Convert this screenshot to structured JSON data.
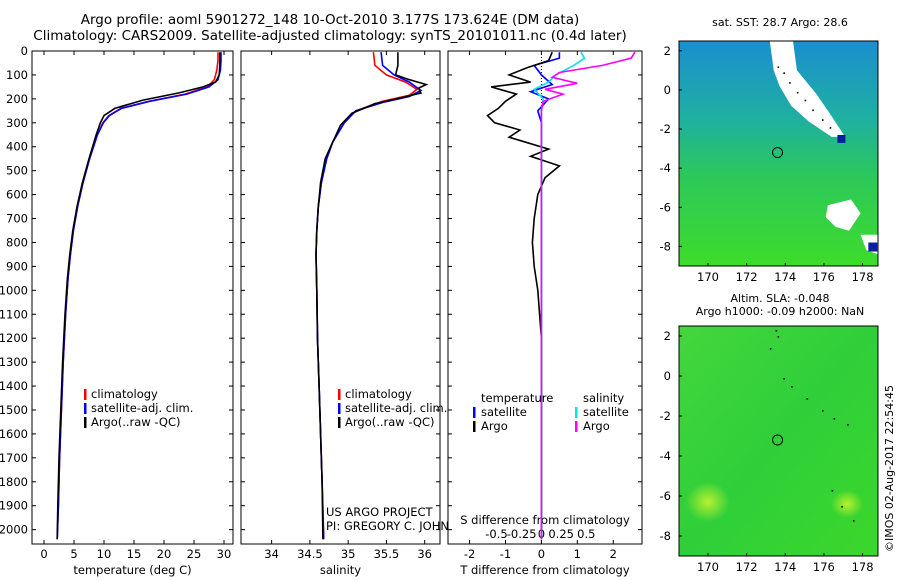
{
  "header": {
    "line1": "Argo profile: aoml 5901272_148 10-Oct-2010 3.177S 173.624E (DM data)",
    "line2": "Climatology: CARS2009. Satellite-adjusted climatology: synTS_20101011.nc (0.4d later)"
  },
  "colors": {
    "climatology": "#ff0000",
    "satellite": "#0000ff",
    "argo": "#000000",
    "sat_salinity": "#00e5e5",
    "argo_salinity": "#ff00ff"
  },
  "chart_data": [
    {
      "type": "line",
      "xlabel": "temperature (deg C)",
      "xlim": [
        -2,
        31.5
      ],
      "ylim": [
        0,
        2060
      ],
      "xticks": [
        0,
        5,
        10,
        15,
        20,
        25,
        30
      ],
      "yticks": [
        0,
        100,
        200,
        300,
        400,
        500,
        600,
        700,
        800,
        900,
        1000,
        1100,
        1200,
        1300,
        1400,
        1500,
        1600,
        1700,
        1800,
        1900,
        2000
      ],
      "legend": [
        "climatology",
        "satellite-adj. clim.",
        "Argo(..raw -QC)"
      ],
      "series": [
        {
          "name": "climatology",
          "color": "#ff0000",
          "points": [
            [
              29.0,
              5
            ],
            [
              29.0,
              40
            ],
            [
              28.8,
              80
            ],
            [
              28.4,
              120
            ],
            [
              27.2,
              150
            ],
            [
              23.5,
              180
            ],
            [
              17.5,
              210
            ],
            [
              12.8,
              240
            ],
            [
              10.8,
              270
            ],
            [
              9.8,
              300
            ],
            [
              8.9,
              350
            ],
            [
              7.6,
              450
            ],
            [
              6.5,
              550
            ],
            [
              5.6,
              650
            ],
            [
              4.9,
              750
            ],
            [
              4.4,
              850
            ],
            [
              4.0,
              950
            ],
            [
              3.6,
              1100
            ],
            [
              3.2,
              1300
            ],
            [
              2.9,
              1500
            ],
            [
              2.6,
              1700
            ],
            [
              2.4,
              1900
            ],
            [
              2.2,
              2040
            ]
          ]
        },
        {
          "name": "satellite-adj. clim.",
          "color": "#0000ff",
          "points": [
            [
              29.5,
              5
            ],
            [
              29.5,
              40
            ],
            [
              29.4,
              80
            ],
            [
              29.0,
              120
            ],
            [
              27.5,
              150
            ],
            [
              23.8,
              180
            ],
            [
              17.6,
              210
            ],
            [
              12.9,
              240
            ],
            [
              10.9,
              270
            ],
            [
              9.9,
              300
            ],
            [
              8.9,
              350
            ],
            [
              7.6,
              450
            ],
            [
              6.5,
              550
            ],
            [
              5.6,
              650
            ],
            [
              4.9,
              750
            ],
            [
              4.4,
              850
            ],
            [
              4.0,
              950
            ],
            [
              3.6,
              1100
            ],
            [
              3.2,
              1300
            ],
            [
              2.9,
              1500
            ],
            [
              2.6,
              1700
            ],
            [
              2.4,
              1900
            ],
            [
              2.2,
              2040
            ]
          ]
        },
        {
          "name": "Argo(..raw -QC)",
          "color": "#000000",
          "points": [
            [
              29.3,
              5
            ],
            [
              29.3,
              60
            ],
            [
              29.2,
              100
            ],
            [
              28.6,
              130
            ],
            [
              26.5,
              150
            ],
            [
              22.5,
              175
            ],
            [
              16.5,
              205
            ],
            [
              11.8,
              240
            ],
            [
              10.0,
              270
            ],
            [
              9.4,
              300
            ],
            [
              8.7,
              350
            ],
            [
              7.5,
              450
            ],
            [
              6.4,
              550
            ],
            [
              5.5,
              650
            ],
            [
              4.8,
              750
            ],
            [
              4.3,
              850
            ],
            [
              3.9,
              950
            ],
            [
              3.5,
              1100
            ],
            [
              3.1,
              1300
            ],
            [
              2.8,
              1500
            ],
            [
              2.5,
              1700
            ],
            [
              2.3,
              1900
            ],
            [
              2.2,
              2040
            ]
          ]
        }
      ]
    },
    {
      "type": "line",
      "xlabel": "salinity",
      "xlim": [
        33.6,
        36.2
      ],
      "ylim": [
        0,
        2060
      ],
      "xticks": [
        34,
        34.5,
        35,
        35.5,
        36
      ],
      "legend": [
        "climatology",
        "satellite-adj. clim.",
        "Argo(..raw -QC)"
      ],
      "annotation": [
        "US ARGO PROJECT",
        "PI: GREGORY C. JOHNSON"
      ],
      "series": [
        {
          "name": "climatology",
          "color": "#ff0000",
          "points": [
            [
              35.33,
              5
            ],
            [
              35.35,
              60
            ],
            [
              35.5,
              100
            ],
            [
              35.75,
              130
            ],
            [
              35.9,
              160
            ],
            [
              35.8,
              185
            ],
            [
              35.45,
              210
            ],
            [
              35.1,
              250
            ],
            [
              34.95,
              300
            ],
            [
              34.8,
              380
            ],
            [
              34.72,
              450
            ],
            [
              34.65,
              550
            ],
            [
              34.61,
              650
            ],
            [
              34.59,
              750
            ],
            [
              34.58,
              850
            ],
            [
              34.59,
              1000
            ],
            [
              34.6,
              1200
            ],
            [
              34.62,
              1400
            ],
            [
              34.64,
              1600
            ],
            [
              34.66,
              1800
            ],
            [
              34.68,
              2040
            ]
          ]
        },
        {
          "name": "satellite-adj. clim.",
          "color": "#0000ff",
          "points": [
            [
              35.43,
              5
            ],
            [
              35.45,
              60
            ],
            [
              35.6,
              100
            ],
            [
              35.8,
              130
            ],
            [
              35.95,
              165
            ],
            [
              35.8,
              190
            ],
            [
              35.45,
              215
            ],
            [
              35.1,
              250
            ],
            [
              34.95,
              300
            ],
            [
              34.8,
              380
            ],
            [
              34.72,
              450
            ],
            [
              34.65,
              550
            ],
            [
              34.61,
              650
            ],
            [
              34.59,
              750
            ],
            [
              34.58,
              850
            ],
            [
              34.59,
              1000
            ],
            [
              34.6,
              1200
            ],
            [
              34.62,
              1400
            ],
            [
              34.64,
              1600
            ],
            [
              34.66,
              1800
            ],
            [
              34.68,
              2040
            ]
          ]
        },
        {
          "name": "Argo(..raw -QC)",
          "color": "#000000",
          "points": [
            [
              35.65,
              5
            ],
            [
              35.65,
              60
            ],
            [
              35.62,
              100
            ],
            [
              35.8,
              120
            ],
            [
              36.02,
              140
            ],
            [
              35.92,
              155
            ],
            [
              35.95,
              175
            ],
            [
              35.7,
              195
            ],
            [
              35.35,
              220
            ],
            [
              35.05,
              260
            ],
            [
              34.9,
              310
            ],
            [
              34.8,
              380
            ],
            [
              34.7,
              450
            ],
            [
              34.64,
              550
            ],
            [
              34.61,
              650
            ],
            [
              34.59,
              750
            ],
            [
              34.58,
              850
            ],
            [
              34.59,
              1000
            ],
            [
              34.6,
              1200
            ],
            [
              34.62,
              1400
            ],
            [
              34.64,
              1600
            ],
            [
              34.66,
              1800
            ],
            [
              34.67,
              2040
            ]
          ]
        }
      ]
    },
    {
      "type": "line",
      "xlabel": "T difference from climatology",
      "xlabel_top": "S difference from climatology",
      "xlim": [
        -2.6,
        2.8
      ],
      "ylim": [
        0,
        2060
      ],
      "xticks": [
        -2,
        -1,
        0,
        1,
        2
      ],
      "xticks_s": [
        "-0.5",
        "-0.25",
        "0",
        "0.25",
        "0.5"
      ],
      "legend_titles": [
        "temperature",
        "salinity"
      ],
      "legend": [
        "satellite",
        "Argo",
        "satellite",
        "Argo"
      ],
      "series": [
        {
          "name": "temperature satellite",
          "color": "#0000ff",
          "points": [
            [
              0.5,
              5
            ],
            [
              0.5,
              30
            ],
            [
              -0.2,
              60
            ],
            [
              0.0,
              100
            ],
            [
              0.3,
              140
            ],
            [
              -0.3,
              170
            ],
            [
              0.2,
              200
            ],
            [
              -0.1,
              250
            ],
            [
              0.0,
              300
            ],
            [
              0.0,
              400
            ],
            [
              0.0,
              600
            ],
            [
              0.0,
              900
            ],
            [
              0.0,
              1200
            ],
            [
              0.0,
              1500
            ],
            [
              0.0,
              1800
            ],
            [
              0.0,
              2040
            ]
          ]
        },
        {
          "name": "temperature Argo",
          "color": "#000000",
          "points": [
            [
              0.3,
              5
            ],
            [
              0.2,
              40
            ],
            [
              -0.4,
              70
            ],
            [
              -0.9,
              100
            ],
            [
              -0.3,
              130
            ],
            [
              -1.4,
              150
            ],
            [
              -0.7,
              180
            ],
            [
              -1.0,
              210
            ],
            [
              -1.2,
              240
            ],
            [
              -1.5,
              270
            ],
            [
              -1.3,
              300
            ],
            [
              -0.6,
              330
            ],
            [
              -0.9,
              360
            ],
            [
              0.2,
              410
            ],
            [
              -0.3,
              440
            ],
            [
              0.5,
              480
            ],
            [
              0.1,
              530
            ],
            [
              -0.1,
              600
            ],
            [
              -0.2,
              700
            ],
            [
              -0.25,
              800
            ],
            [
              -0.2,
              900
            ],
            [
              -0.1,
              1000
            ],
            [
              -0.05,
              1100
            ],
            [
              0.0,
              1200
            ],
            [
              0.0,
              1500
            ],
            [
              0.0,
              1800
            ],
            [
              0.0,
              2040
            ]
          ]
        },
        {
          "name": "salinity satellite",
          "color": "#00e5e5",
          "points": [
            [
              1.1,
              5
            ],
            [
              1.2,
              30
            ],
            [
              0.9,
              60
            ],
            [
              0.4,
              100
            ],
            [
              0.2,
              130
            ],
            [
              -0.2,
              160
            ],
            [
              0.05,
              200
            ],
            [
              0.0,
              250
            ],
            [
              0.0,
              300
            ],
            [
              0.0,
              400
            ],
            [
              0.0,
              600
            ],
            [
              0.0,
              900
            ],
            [
              0.0,
              1200
            ],
            [
              0.0,
              1500
            ],
            [
              0.0,
              1800
            ],
            [
              0.0,
              2040
            ]
          ]
        },
        {
          "name": "salinity Argo",
          "color": "#ff00ff",
          "points": [
            [
              2.6,
              5
            ],
            [
              2.5,
              30
            ],
            [
              1.7,
              60
            ],
            [
              0.5,
              90
            ],
            [
              0.3,
              110
            ],
            [
              1.0,
              135
            ],
            [
              0.1,
              160
            ],
            [
              0.6,
              180
            ],
            [
              0.05,
              210
            ],
            [
              0.0,
              250
            ],
            [
              0.0,
              300
            ],
            [
              0.0,
              400
            ],
            [
              0.0,
              600
            ],
            [
              0.0,
              900
            ],
            [
              0.0,
              1200
            ],
            [
              0.0,
              1500
            ],
            [
              0.0,
              1800
            ],
            [
              0.0,
              2040
            ]
          ]
        }
      ]
    },
    {
      "type": "heatmap",
      "title": "sat. SST: 28.7 Argo: 28.6",
      "xlim": [
        168.5,
        178.8
      ],
      "ylim": [
        -9,
        2.5
      ],
      "xticks": [
        170,
        172,
        174,
        176,
        178
      ],
      "yticks": [
        2,
        0,
        -2,
        -4,
        -6,
        -8
      ],
      "marker": [
        173.6,
        -3.2
      ]
    },
    {
      "type": "heatmap",
      "title": "Altim. SLA: -0.048",
      "subtitle": "Argo h1000: -0.09 h2000: NaN",
      "xlim": [
        168.5,
        178.8
      ],
      "ylim": [
        -9,
        2.5
      ],
      "xticks": [
        170,
        172,
        174,
        176,
        178
      ],
      "yticks": [
        2,
        0,
        -2,
        -4,
        -6,
        -8
      ],
      "marker": [
        173.6,
        -3.2
      ]
    }
  ],
  "credit": "©IMOS 02-Aug-2017 22:54:45"
}
